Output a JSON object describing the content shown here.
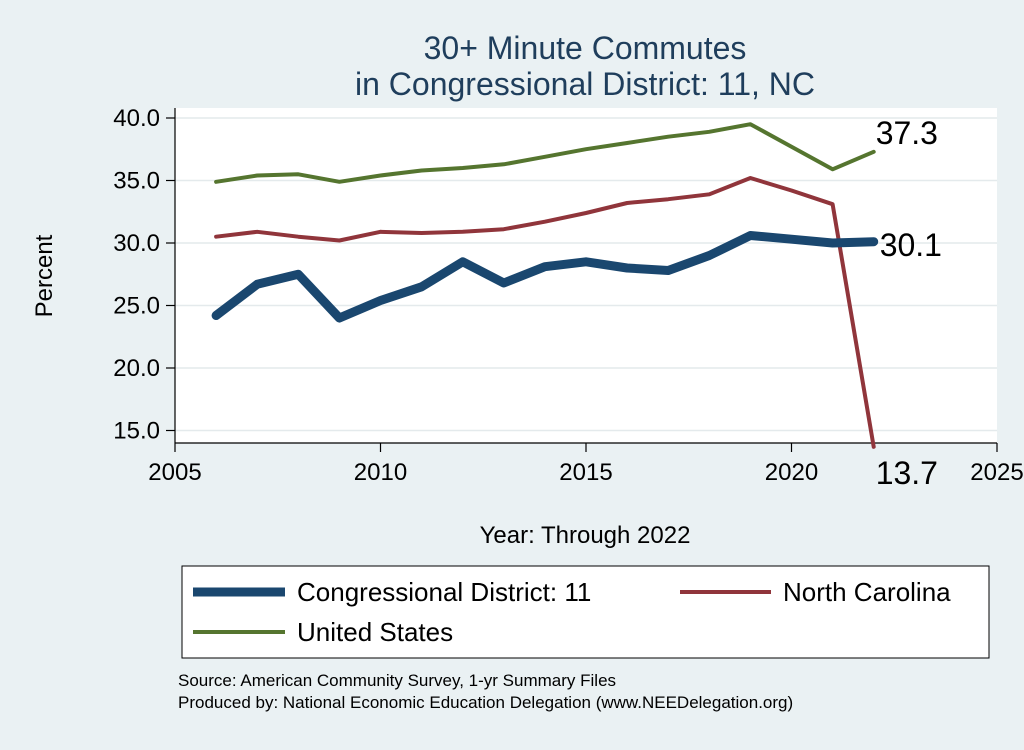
{
  "chart_data": {
    "type": "line",
    "title": [
      "30+ Minute Commutes",
      "in Congressional District:  11, NC"
    ],
    "xlabel": "Year: Through 2022",
    "ylabel": "Percent",
    "xlim": [
      2005,
      2025
    ],
    "ylim": [
      14,
      40.8
    ],
    "xticks": [
      2005,
      2010,
      2015,
      2020,
      2025
    ],
    "xtick_labels": [
      "2005",
      "2010",
      "2015",
      "2020",
      "2025"
    ],
    "yticks": [
      15,
      20,
      25,
      30,
      35,
      40
    ],
    "ytick_labels": [
      "15.0",
      "20.0",
      "25.0",
      "30.0",
      "35.0",
      "40.0"
    ],
    "grid": "horizontal",
    "x": [
      2006,
      2007,
      2008,
      2009,
      2010,
      2011,
      2012,
      2013,
      2014,
      2015,
      2016,
      2017,
      2018,
      2019,
      2020,
      2021,
      2022
    ],
    "series": [
      {
        "name": "Congressional District:  11",
        "color": "#1a476f",
        "values": [
          24.2,
          26.7,
          27.5,
          24.0,
          25.4,
          26.5,
          28.5,
          26.8,
          28.1,
          28.5,
          28.0,
          27.8,
          29.0,
          30.6,
          30.3,
          30.0,
          30.1
        ],
        "end_label": "30.1"
      },
      {
        "name": "North Carolina",
        "color": "#90353b",
        "values": [
          30.5,
          30.9,
          30.5,
          30.2,
          30.9,
          30.8,
          30.9,
          31.1,
          31.7,
          32.4,
          33.2,
          33.5,
          33.9,
          35.2,
          34.2,
          33.1,
          13.7
        ],
        "end_label": "13.7"
      },
      {
        "name": "United States",
        "color": "#55752f",
        "values": [
          34.9,
          35.4,
          35.5,
          34.9,
          35.4,
          35.8,
          36.0,
          36.3,
          36.9,
          37.5,
          38.0,
          38.5,
          38.9,
          39.5,
          37.7,
          35.9,
          37.3
        ],
        "end_label": "37.3"
      }
    ],
    "legend": {
      "position": "bottom",
      "entries": [
        "Congressional District:  11",
        "North Carolina",
        "United States"
      ]
    },
    "notes": [
      "Source: American Community Survey, 1-yr Summary Files",
      "Produced by: National Economic Education Delegation (www.NEEDelegation.org)"
    ]
  }
}
